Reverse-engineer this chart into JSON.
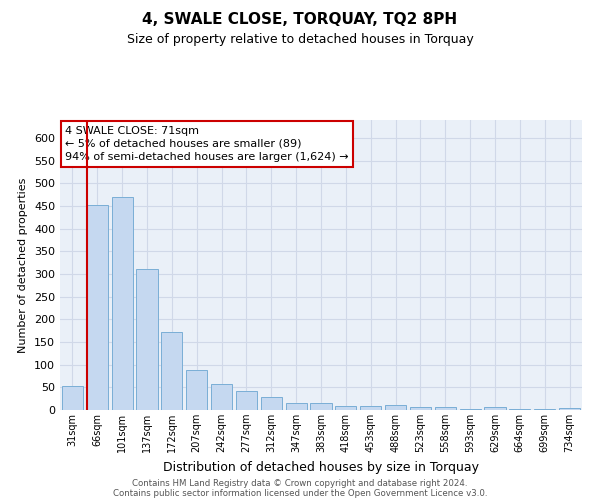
{
  "title": "4, SWALE CLOSE, TORQUAY, TQ2 8PH",
  "subtitle": "Size of property relative to detached houses in Torquay",
  "xlabel": "Distribution of detached houses by size in Torquay",
  "ylabel": "Number of detached properties",
  "categories": [
    "31sqm",
    "66sqm",
    "101sqm",
    "137sqm",
    "172sqm",
    "207sqm",
    "242sqm",
    "277sqm",
    "312sqm",
    "347sqm",
    "383sqm",
    "418sqm",
    "453sqm",
    "488sqm",
    "523sqm",
    "558sqm",
    "593sqm",
    "629sqm",
    "664sqm",
    "699sqm",
    "734sqm"
  ],
  "values": [
    52,
    452,
    471,
    312,
    172,
    88,
    57,
    41,
    29,
    15,
    15,
    8,
    8,
    10,
    7,
    7,
    2,
    7,
    2,
    2,
    4
  ],
  "bar_color": "#c5d8f0",
  "bar_edge_color": "#7aaed6",
  "grid_color": "#d0d8e8",
  "background_color": "#eaf0f8",
  "vline_color": "#cc0000",
  "vline_x_index": 1,
  "annotation_text": "4 SWALE CLOSE: 71sqm\n← 5% of detached houses are smaller (89)\n94% of semi-detached houses are larger (1,624) →",
  "annotation_box_color": "#ffffff",
  "annotation_box_edge": "#cc0000",
  "footer1": "Contains HM Land Registry data © Crown copyright and database right 2024.",
  "footer2": "Contains public sector information licensed under the Open Government Licence v3.0.",
  "ylim": [
    0,
    640
  ],
  "yticks": [
    0,
    50,
    100,
    150,
    200,
    250,
    300,
    350,
    400,
    450,
    500,
    550,
    600
  ],
  "title_fontsize": 11,
  "subtitle_fontsize": 9,
  "ylabel_fontsize": 8,
  "xlabel_fontsize": 9,
  "tick_fontsize": 8,
  "xtick_fontsize": 7
}
